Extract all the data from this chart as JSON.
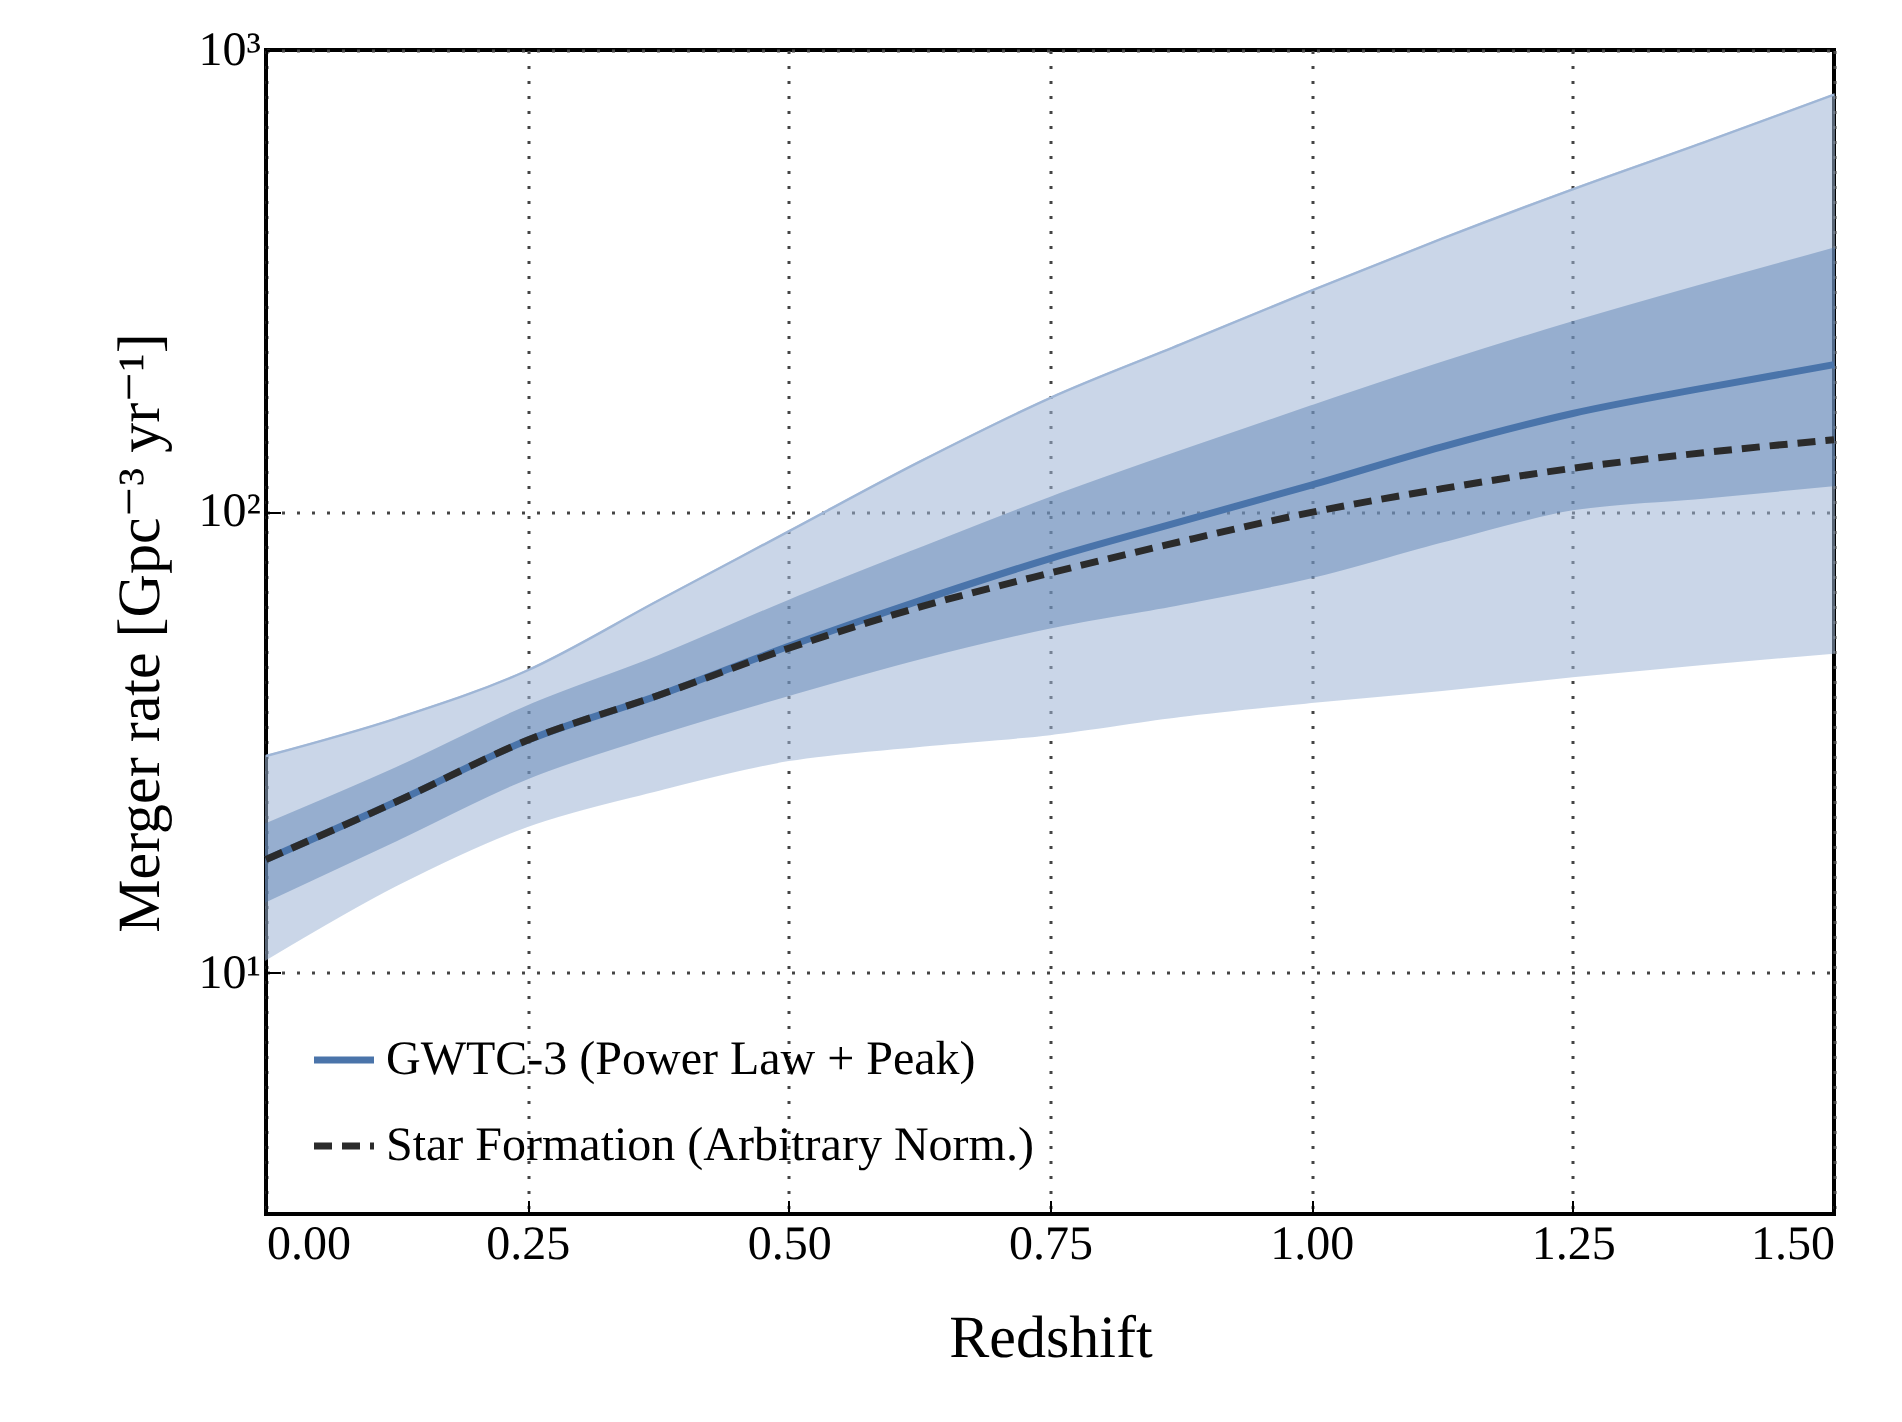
{
  "chart_data": {
    "type": "line",
    "xlabel": "Redshift",
    "ylabel": "Merger rate [Gpc⁻³ yr⁻¹]",
    "x": [
      0,
      0.125,
      0.25,
      0.375,
      0.5,
      0.625,
      0.75,
      0.875,
      1.0,
      1.125,
      1.25,
      1.375,
      1.5
    ],
    "series": [
      {
        "type": "line",
        "color": "#9fb6d6",
        "values": [
          29.5,
          35.6,
          45.2,
          64,
          90.5,
          128,
          176,
          230,
          301,
          390,
          499,
          630,
          800
        ],
        "upper": [
          29.5,
          35.6,
          45.2,
          64,
          90.5,
          128,
          176,
          230,
          301,
          390,
          499,
          630,
          800
        ],
        "lower": [
          10.7,
          15.5,
          20.8,
          24.9,
          28.9,
          31,
          32.9,
          36,
          38.6,
          41,
          43.9,
          46.7,
          49.4
        ]
      },
      {
        "name": "GWTC-3 (Power Law + Peak)",
        "type": "line",
        "color": "#4a74aa",
        "line_style": "solid",
        "values": [
          17.6,
          23.5,
          31.9,
          39.9,
          51,
          64,
          79,
          95,
          114,
          138,
          163,
          185,
          208
        ],
        "lower": [
          14.3,
          19.4,
          26.4,
          32.9,
          40,
          48,
          56,
          63,
          72,
          86,
          101,
          107,
          114
        ],
        "upper": [
          21,
          27.8,
          37.8,
          48.5,
          64,
          83,
          107,
          135,
          169,
          210,
          257,
          310,
          371
        ]
      },
      {
        "name": "Star Formation (Arbitrary Norm.)",
        "type": "line",
        "color": "#2b2b2b",
        "line_style": "dashed",
        "values": [
          17.6,
          23.5,
          31.9,
          39.9,
          50.5,
          62,
          73.5,
          86,
          99.5,
          112,
          124,
          134,
          143
        ]
      }
    ],
    "xlim": [
      0,
      1.5
    ],
    "xticks": [
      {
        "value": 0,
        "label": "0.00"
      },
      {
        "value": 0.25,
        "label": "0.25"
      },
      {
        "value": 0.5,
        "label": "0.50"
      },
      {
        "value": 0.75,
        "label": "0.75"
      },
      {
        "value": 1.0,
        "label": "1.00"
      },
      {
        "value": 1.25,
        "label": "1.25"
      },
      {
        "value": 1.5,
        "label": "1.50"
      }
    ],
    "ylim": [
      3,
      1000
    ],
    "yticks": [
      {
        "value": 10,
        "label": "10¹"
      },
      {
        "value": 100,
        "label": "10²"
      },
      {
        "value": 1000,
        "label": "10³"
      }
    ],
    "log": "y",
    "grid": true,
    "legend": "bottom left"
  }
}
